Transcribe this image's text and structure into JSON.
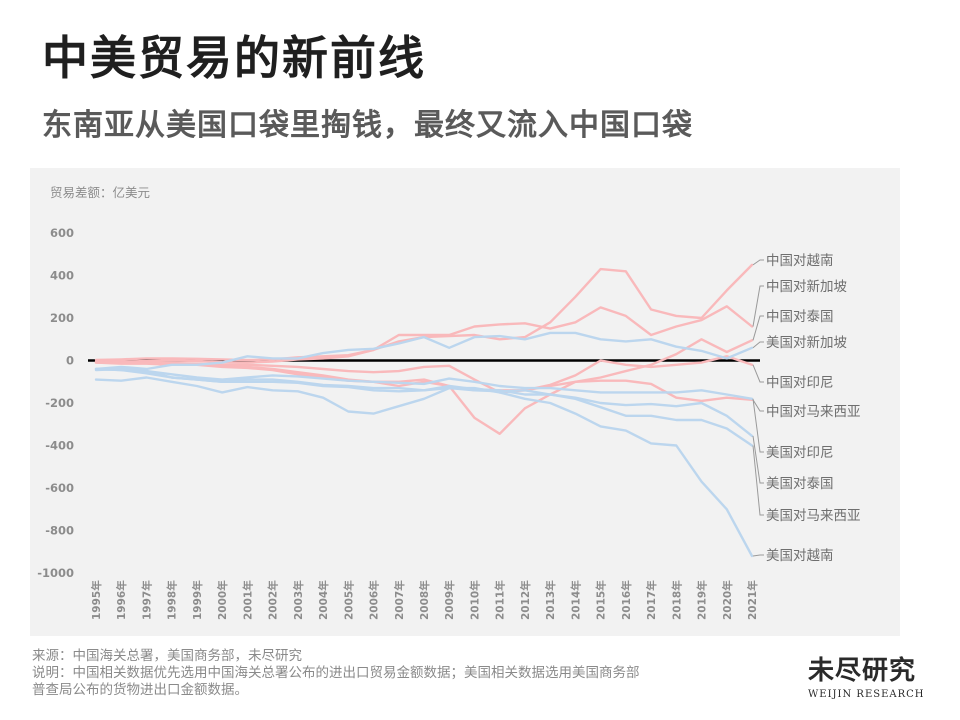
{
  "title": "中美贸易的新前线",
  "subtitle": "东南亚从美国口袋里掏钱，最终又流入中国口袋",
  "footer": {
    "source": "来源：中国海关总署，美国商务部，未尽研究",
    "note_line1": "说明：中国相关数据优先选用中国海关总署公布的进出口贸易金额数据；美国相关数据选用美国商务部",
    "note_line2": "普查局公布的货物进出口金额数据。"
  },
  "logo": {
    "cn": "未尽研究",
    "en": "WEIJIN RESEARCH"
  },
  "chart_data": {
    "type": "line",
    "title": "",
    "ylabel": "贸易差额：亿美元",
    "ylim": [
      -1000,
      600
    ],
    "yticks": [
      600,
      400,
      200,
      0,
      -200,
      -400,
      -600,
      -800,
      -1000
    ],
    "ytick_labels": [
      "600",
      "400",
      "200",
      "0",
      "-200",
      "-400",
      "-600",
      "-800",
      "-1000"
    ],
    "x": [
      "1995年",
      "1996年",
      "1997年",
      "1998年",
      "1999年",
      "2000年",
      "2001年",
      "2002年",
      "2003年",
      "2004年",
      "2005年",
      "2006年",
      "2007年",
      "2008年",
      "2009年",
      "2010年",
      "2011年",
      "2012年",
      "2013年",
      "2014年",
      "2015年",
      "2016年",
      "2017年",
      "2018年",
      "2019年",
      "2020年",
      "2021年"
    ],
    "grid": false,
    "legend": "direct labels at right end of lines",
    "series": [
      {
        "name": "中国对越南",
        "color": "#f9b9bb",
        "values": [
          3,
          5,
          10,
          10,
          8,
          5,
          2,
          5,
          15,
          20,
          25,
          50,
          90,
          110,
          115,
          120,
          100,
          110,
          180,
          300,
          430,
          420,
          240,
          210,
          200,
          330,
          450
        ]
      },
      {
        "name": "中国对新加坡",
        "color": "#f9b9bb",
        "values": [
          -5,
          -5,
          -3,
          0,
          -2,
          -8,
          -10,
          -5,
          5,
          10,
          20,
          50,
          120,
          120,
          120,
          160,
          170,
          175,
          150,
          180,
          250,
          210,
          120,
          160,
          190,
          255,
          160
        ]
      },
      {
        "name": "中国对泰国",
        "color": "#f9b9bb",
        "values": [
          -8,
          -10,
          -10,
          -12,
          -15,
          -20,
          -20,
          -25,
          -30,
          -40,
          -50,
          -55,
          -50,
          -30,
          -25,
          -90,
          -150,
          -140,
          -120,
          -100,
          -80,
          -50,
          -20,
          30,
          100,
          40,
          95
        ]
      },
      {
        "name": "中国对印尼",
        "color": "#f9b9bb",
        "values": [
          -10,
          -12,
          -12,
          -15,
          -18,
          -25,
          -30,
          -40,
          -55,
          -70,
          -90,
          -100,
          -100,
          -90,
          -120,
          -140,
          -140,
          -140,
          -115,
          -70,
          0,
          -20,
          -30,
          -20,
          -10,
          20,
          -20
        ]
      },
      {
        "name": "中国对马来西亚",
        "color": "#f9b9bb",
        "values": [
          -10,
          -15,
          -15,
          -20,
          -20,
          -30,
          -35,
          -45,
          -65,
          -80,
          -95,
          -100,
          -120,
          -100,
          -120,
          -270,
          -345,
          -225,
          -160,
          -100,
          -95,
          -95,
          -110,
          -175,
          -190,
          -175,
          -185
        ]
      },
      {
        "name": "美国对新加坡",
        "color": "#bcd6ee",
        "values": [
          -40,
          -30,
          -40,
          -20,
          -20,
          -10,
          20,
          10,
          10,
          35,
          50,
          55,
          80,
          110,
          60,
          110,
          115,
          100,
          130,
          130,
          100,
          90,
          100,
          65,
          45,
          10,
          60
        ]
      },
      {
        "name": "美国对印尼",
        "color": "#bcd6ee",
        "values": [
          -40,
          -45,
          -50,
          -65,
          -80,
          -90,
          -80,
          -70,
          -75,
          -85,
          -95,
          -100,
          -105,
          -110,
          -85,
          -100,
          -120,
          -130,
          -130,
          -140,
          -150,
          -150,
          -150,
          -150,
          -140,
          -160,
          -180
        ]
      },
      {
        "name": "美国对泰国",
        "color": "#bcd6ee",
        "values": [
          -45,
          -40,
          -50,
          -80,
          -90,
          -100,
          -90,
          -90,
          -100,
          -115,
          -120,
          -130,
          -130,
          -140,
          -120,
          -135,
          -140,
          -160,
          -160,
          -175,
          -200,
          -210,
          -205,
          -215,
          -200,
          -260,
          -355
        ]
      },
      {
        "name": "美国对马来西亚",
        "color": "#bcd6ee",
        "values": [
          -40,
          -45,
          -60,
          -80,
          -90,
          -100,
          -100,
          -100,
          -105,
          -120,
          -125,
          -140,
          -145,
          -140,
          -130,
          -140,
          -145,
          -140,
          -160,
          -180,
          -220,
          -260,
          -260,
          -280,
          -280,
          -320,
          -400
        ]
      },
      {
        "name": "美国对越南",
        "color": "#bcd6ee",
        "values": [
          -90,
          -95,
          -80,
          -100,
          -120,
          -150,
          -125,
          -140,
          -145,
          -175,
          -240,
          -250,
          -215,
          -180,
          -130,
          -130,
          -150,
          -180,
          -200,
          -250,
          -310,
          -330,
          -390,
          -400,
          -570,
          -700,
          -920
        ]
      }
    ],
    "zero_line": true
  }
}
